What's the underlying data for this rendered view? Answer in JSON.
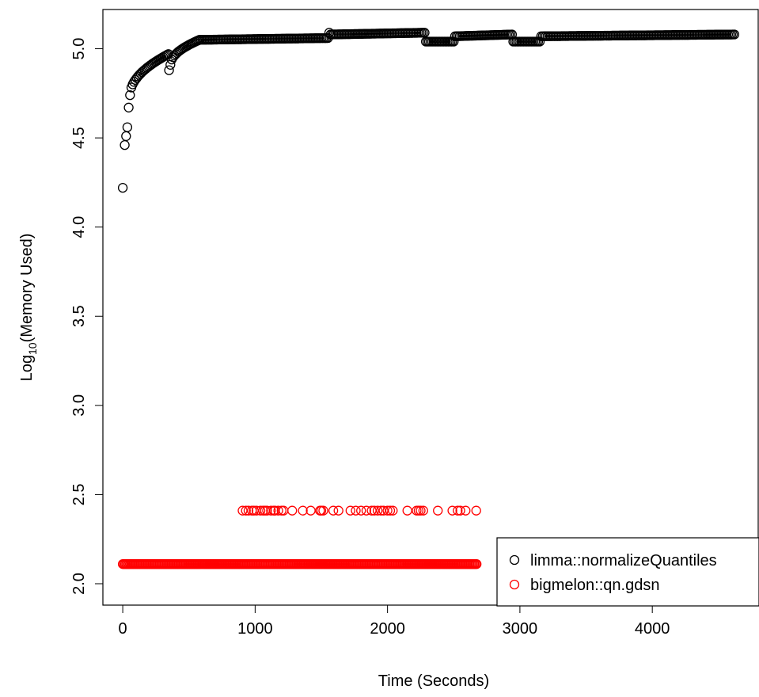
{
  "chart_data": {
    "type": "scatter",
    "title": "",
    "xlabel": "Time (Seconds)",
    "ylabel": {
      "prefix": "Log",
      "subscript": "10",
      "suffix": "(Memory Used)"
    },
    "xlim": [
      -150,
      4800
    ],
    "ylim": [
      1.88,
      5.22
    ],
    "x_ticks": [
      "0",
      "1000",
      "2000",
      "3000",
      "4000"
    ],
    "x_tick_values": [
      0,
      1000,
      2000,
      3000,
      4000
    ],
    "y_ticks": [
      "2.0",
      "2.5",
      "3.0",
      "3.5",
      "4.0",
      "4.5",
      "5.0"
    ],
    "y_tick_values": [
      2.0,
      2.5,
      3.0,
      3.5,
      4.0,
      4.5,
      5.0
    ],
    "legend_position": "bottom-right",
    "series": [
      {
        "name": "limma::normalizeQuantiles",
        "color": "#000000",
        "marker": "open-circle",
        "segments": [
          {
            "x_from": 0,
            "x_to": 0,
            "y": 4.22,
            "kind": "point"
          },
          {
            "x_from": 15,
            "x_to": 15,
            "y": 4.46,
            "kind": "point"
          },
          {
            "x_from": 25,
            "x_to": 25,
            "y": 4.51,
            "kind": "point"
          },
          {
            "x_from": 35,
            "x_to": 35,
            "y": 4.56,
            "kind": "point"
          },
          {
            "x_from": 45,
            "x_to": 45,
            "y": 4.67,
            "kind": "point"
          },
          {
            "x_from": 55,
            "x_to": 345,
            "y_from": 4.74,
            "y_to": 4.97,
            "step": 10
          },
          {
            "x_from": 350,
            "x_to": 350,
            "y": 4.88,
            "kind": "point"
          },
          {
            "x_from": 360,
            "x_to": 580,
            "y_from": 4.91,
            "y_to": 5.05,
            "step": 10
          },
          {
            "x_from": 580,
            "x_to": 1550,
            "y_from": 5.05,
            "y_to": 5.06,
            "step": 12
          },
          {
            "x_from": 1560,
            "x_to": 1560,
            "y": 5.09,
            "kind": "point"
          },
          {
            "x_from": 1570,
            "x_to": 2280,
            "y_from": 5.08,
            "y_to": 5.09,
            "step": 12
          },
          {
            "x_from": 2290,
            "x_to": 2500,
            "y_from": 5.04,
            "y_to": 5.04,
            "step": 12
          },
          {
            "x_from": 2510,
            "x_to": 2940,
            "y_from": 5.07,
            "y_to": 5.08,
            "step": 12
          },
          {
            "x_from": 2950,
            "x_to": 3150,
            "y_from": 5.04,
            "y_to": 5.04,
            "step": 12
          },
          {
            "x_from": 3160,
            "x_to": 4620,
            "y_from": 5.07,
            "y_to": 5.08,
            "step": 12
          }
        ]
      },
      {
        "name": "bigmelon::qn.gdsn",
        "color": "#ff0000",
        "marker": "open-circle",
        "low_level": 2.11,
        "low_range": [
          0,
          2680
        ],
        "low_step": 9,
        "high_level": 2.41,
        "high_x": [
          905,
          930,
          950,
          975,
          990,
          1010,
          1040,
          1060,
          1075,
          1090,
          1120,
          1140,
          1150,
          1175,
          1200,
          1215,
          1280,
          1360,
          1420,
          1490,
          1500,
          1515,
          1590,
          1630,
          1720,
          1760,
          1800,
          1840,
          1880,
          1900,
          1925,
          1950,
          1970,
          2000,
          2020,
          2040,
          2150,
          2220,
          2235,
          2250,
          2270,
          2380,
          2490,
          2530,
          2550,
          2590,
          2670
        ]
      }
    ]
  }
}
